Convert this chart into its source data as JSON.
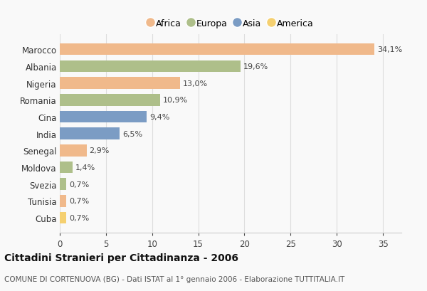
{
  "countries": [
    "Marocco",
    "Albania",
    "Nigeria",
    "Romania",
    "Cina",
    "India",
    "Senegal",
    "Moldova",
    "Svezia",
    "Tunisia",
    "Cuba"
  ],
  "values": [
    34.1,
    19.6,
    13.0,
    10.9,
    9.4,
    6.5,
    2.9,
    1.4,
    0.7,
    0.7,
    0.7
  ],
  "labels": [
    "34,1%",
    "19,6%",
    "13,0%",
    "10,9%",
    "9,4%",
    "6,5%",
    "2,9%",
    "1,4%",
    "0,7%",
    "0,7%",
    "0,7%"
  ],
  "colors": [
    "#F0B98B",
    "#AEBF8A",
    "#F0B98B",
    "#AEBF8A",
    "#7B9CC4",
    "#7B9CC4",
    "#F0B98B",
    "#AEBF8A",
    "#AEBF8A",
    "#F0B98B",
    "#F5D070"
  ],
  "legend_labels": [
    "Africa",
    "Europa",
    "Asia",
    "America"
  ],
  "legend_colors": [
    "#F0B98B",
    "#AEBF8A",
    "#7B9CC4",
    "#F5D070"
  ],
  "title": "Cittadini Stranieri per Cittadinanza - 2006",
  "subtitle": "COMUNE DI CORTENUOVA (BG) - Dati ISTAT al 1° gennaio 2006 - Elaborazione TUTTITALIA.IT",
  "xlim": [
    0,
    37
  ],
  "xticks": [
    0,
    5,
    10,
    15,
    20,
    25,
    30,
    35
  ],
  "background_color": "#f9f9f9"
}
